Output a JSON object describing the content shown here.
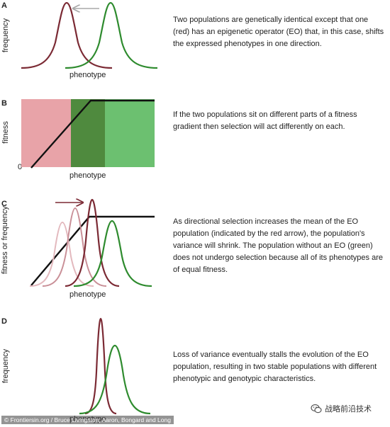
{
  "panels": {
    "a": {
      "letter": "A",
      "ylabel": "frequency",
      "xlabel": "phenotype",
      "description": "Two populations are genetically identical except that one (red) has an epigenetic operator (EO) that, in this case, shifts the expressed phenotypes in one direction."
    },
    "b": {
      "letter": "B",
      "ylabel": "fitness",
      "xlabel": "phenotype",
      "zero_label": "0",
      "description": "If the two populations sit on different parts of a fitness gradient then selection will act differently on each."
    },
    "c": {
      "letter": "C",
      "ylabel": "fitness or frequency",
      "xlabel": "phenotype",
      "description": "As directional selection increases the mean of the EO population (indicated by the red arrow), the population's variance will shrink.  The population without an EO (green) does not undergo selection because all of its phenotypes are of equal fitness."
    },
    "d": {
      "letter": "D",
      "ylabel": "frequency",
      "xlabel": "phenotype",
      "description": "Loss of variance eventually stalls the evolution of the EO population, resulting in two stable populations with different phenotypic and genotypic characteristics."
    }
  },
  "footer": {
    "credit": "© Frontiersin.org / Bruce Livingston, Aaron, Bongard and Long",
    "watermark": "战略前沿技术",
    "watermark_icon": "wechat-icon"
  },
  "colors": {
    "red_population": "#7b2a34",
    "green_population": "#2e8b2e",
    "faded_red_1": "#e3b9be",
    "faded_red_2": "#c98f97",
    "red_region": "#e8a3a8",
    "green_region": "#6cc070",
    "overlap_region": "#4f8a3e",
    "arrow_gray": "#a8a8a8",
    "arrow_red": "#7b2a34"
  }
}
